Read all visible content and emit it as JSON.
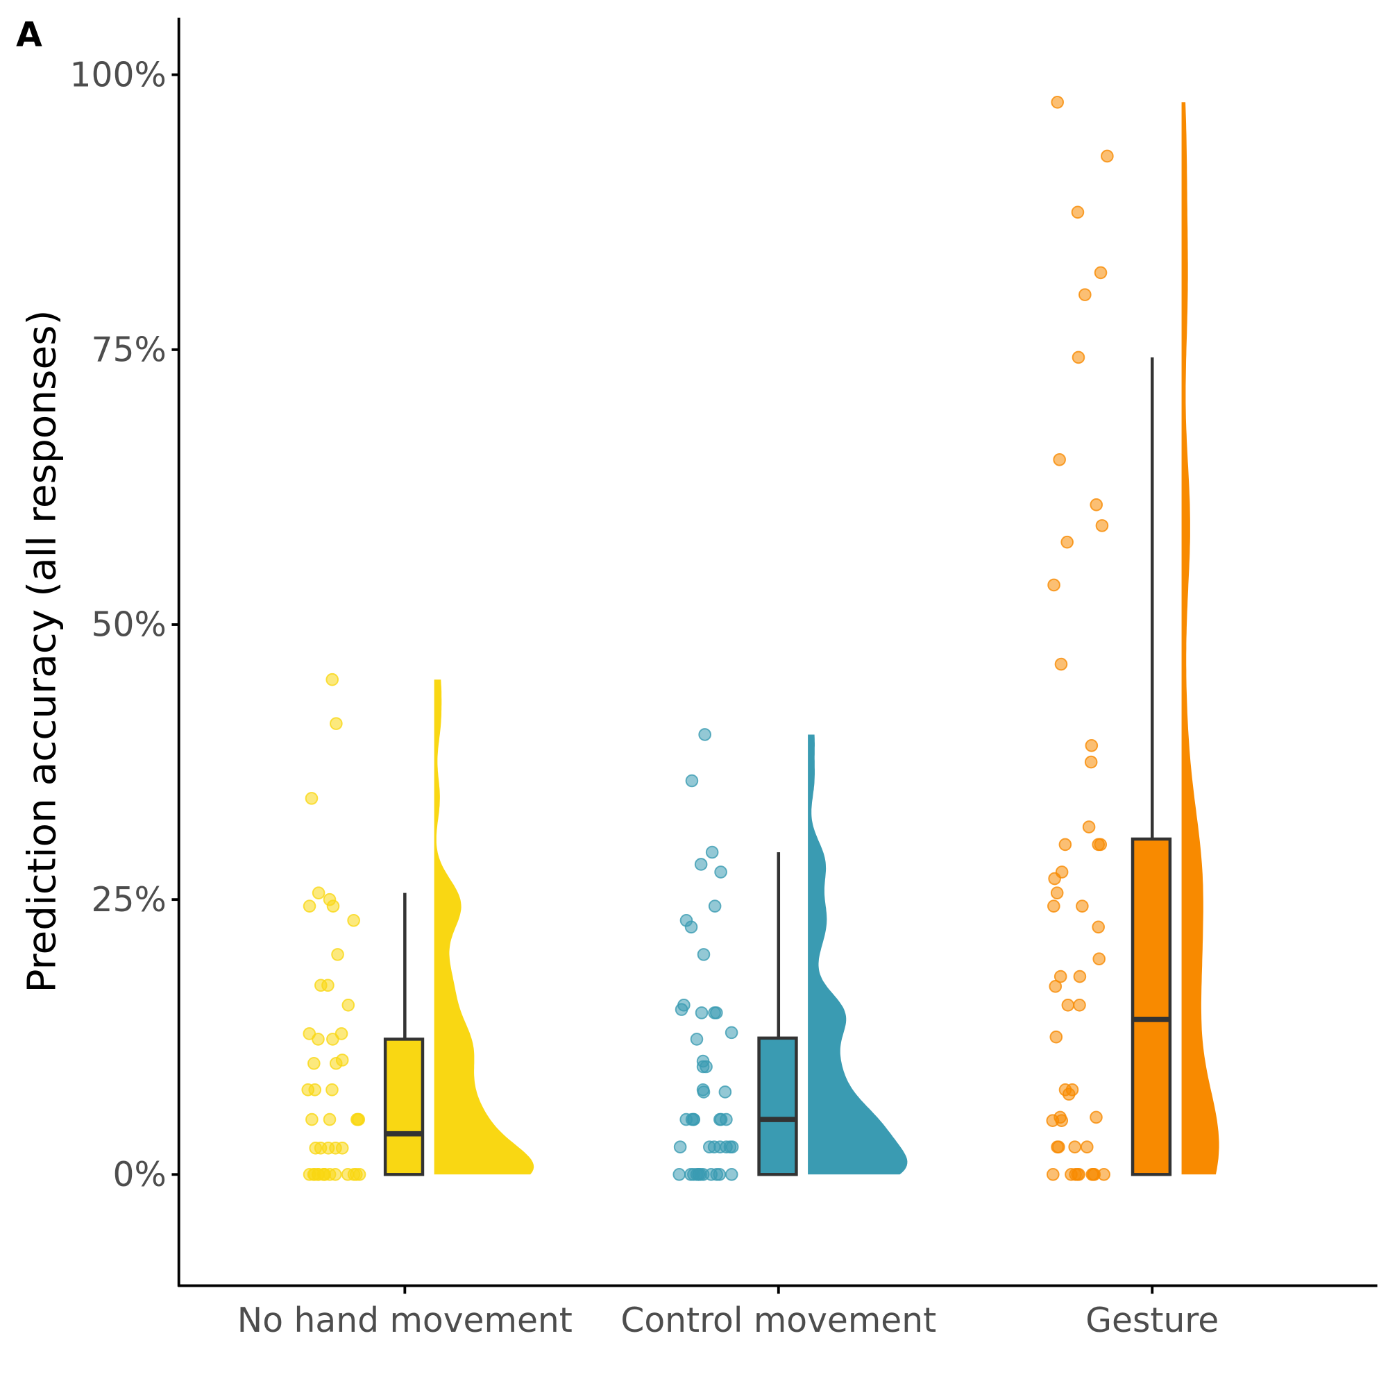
{
  "chart_data": {
    "type": "raincloud",
    "panel_label": "A",
    "title": "",
    "xlabel": "",
    "ylabel": "Prediction accuracy (all responses)",
    "ylim": [
      -10,
      105
    ],
    "yticks": [
      0,
      25,
      50,
      75,
      100
    ],
    "ytick_labels": [
      "0%",
      "25%",
      "50%",
      "75%",
      "100%"
    ],
    "categories": [
      "No hand movement",
      "Control movement",
      "Gesture"
    ],
    "series": [
      {
        "name": "No hand movement",
        "color": "#F9D713",
        "points": [
          45.0,
          41.0,
          34.2,
          25.6,
          25.0,
          24.4,
          24.4,
          23.1,
          20.0,
          17.2,
          17.2,
          15.4,
          12.8,
          12.8,
          12.3,
          12.3,
          10.4,
          10.1,
          10.1,
          7.7,
          7.7,
          7.7,
          5.0,
          5.0,
          5.0,
          5.0,
          5.0,
          2.4,
          2.4,
          2.4,
          2.4,
          2.4,
          0,
          0,
          0,
          0,
          0,
          0,
          0,
          0,
          0,
          0,
          0,
          0,
          0,
          0
        ],
        "box": {
          "min": 0,
          "q1": 0,
          "median": 3.7,
          "q3": 12.3,
          "whisker_high": 25.6
        }
      },
      {
        "name": "Control movement",
        "color": "#3A9BB2",
        "points": [
          40.0,
          35.8,
          29.3,
          28.2,
          27.5,
          24.4,
          23.1,
          22.5,
          20.0,
          15.4,
          15.0,
          14.7,
          14.7,
          14.7,
          12.9,
          12.3,
          10.3,
          9.8,
          9.8,
          7.5,
          7.5,
          7.7,
          5.0,
          5.0,
          5.0,
          5.0,
          5.0,
          5.0,
          5.0,
          2.5,
          2.5,
          2.5,
          2.5,
          2.5,
          2.5,
          2.5,
          0,
          0,
          0,
          0,
          0,
          0,
          0,
          0,
          0,
          0,
          0,
          0
        ],
        "box": {
          "min": 0,
          "q1": 0,
          "median": 5.0,
          "q3": 12.4,
          "whisker_high": 29.3
        }
      },
      {
        "name": "Gesture",
        "color": "#F88A00",
        "points": [
          97.5,
          92.6,
          87.5,
          82.0,
          80.0,
          74.3,
          65.0,
          60.9,
          59.0,
          57.5,
          53.6,
          46.4,
          39.0,
          37.5,
          31.6,
          30.0,
          30.0,
          30.0,
          27.5,
          26.9,
          25.6,
          24.4,
          24.4,
          22.5,
          19.6,
          18.0,
          18.0,
          17.1,
          15.4,
          15.4,
          12.5,
          7.7,
          7.7,
          7.3,
          5.2,
          5.2,
          4.9,
          4.9,
          2.5,
          2.5,
          2.5,
          2.5,
          0,
          0,
          0,
          0,
          0,
          0,
          0,
          0,
          0
        ],
        "box": {
          "min": 0,
          "q1": 0,
          "median": 14.1,
          "q3": 30.5,
          "whisker_high": 74.3
        }
      }
    ]
  }
}
